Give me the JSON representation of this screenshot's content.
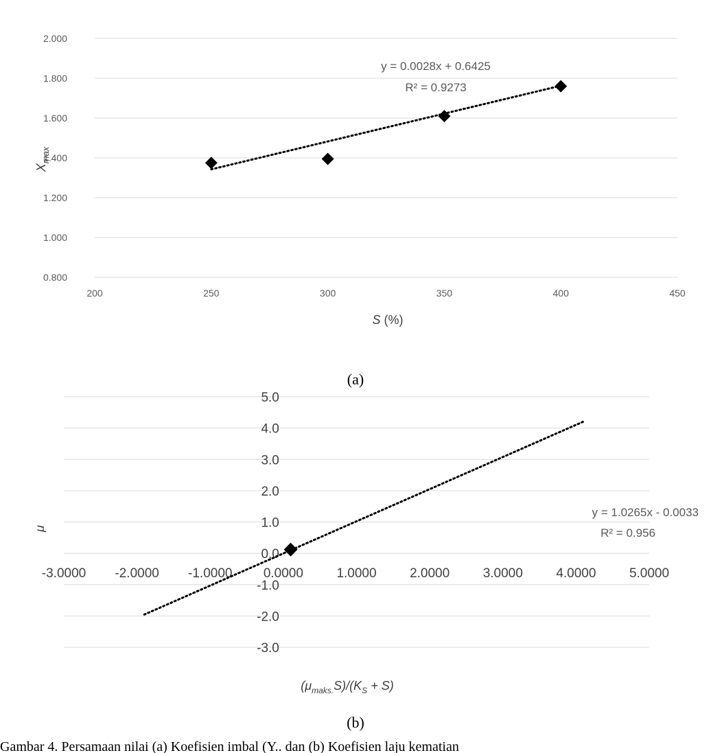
{
  "chart_data": [
    {
      "type": "scatter",
      "title": "",
      "xlabel": "S (%)",
      "ylabel": "Xmax",
      "xlim": [
        200,
        450
      ],
      "ylim": [
        0.8,
        2.0
      ],
      "x_ticks": [
        "200",
        "250",
        "300",
        "350",
        "400",
        "450"
      ],
      "y_ticks": [
        "0.800",
        "1.000",
        "1.200",
        "1.400",
        "1.600",
        "1.800",
        "2.000"
      ],
      "grid": "horizontal",
      "marker": "diamond",
      "points": [
        {
          "x": 250,
          "y": 1.375
        },
        {
          "x": 300,
          "y": 1.395
        },
        {
          "x": 350,
          "y": 1.61
        },
        {
          "x": 400,
          "y": 1.76
        }
      ],
      "trendline": {
        "type": "linear",
        "slope": 0.0028,
        "intercept": 0.6425,
        "x_range": [
          250,
          400
        ]
      },
      "equation": "y = 0.0028x + 0.6425",
      "r2": "R² = 0.9273",
      "caption": "(a)"
    },
    {
      "type": "scatter",
      "title": "",
      "xlabel": "(μmaks.S)/(KS + S)",
      "ylabel": "μ",
      "xlim": [
        -3.0,
        5.0
      ],
      "ylim": [
        -3.0,
        5.0
      ],
      "x_ticks": [
        "-3.0000",
        "-2.0000",
        "-1.0000",
        "0.0000",
        "1.0000",
        "2.0000",
        "3.0000",
        "4.0000",
        "5.0000"
      ],
      "y_ticks": [
        "-3.0",
        "-2.0",
        "-1.0",
        "0.0",
        "1.0",
        "2.0",
        "3.0",
        "4.0",
        "5.0"
      ],
      "grid": "horizontal",
      "marker": "diamond",
      "points": [
        {
          "x": 0.1,
          "y": 0.12
        }
      ],
      "trendline": {
        "type": "linear",
        "slope": 1.0265,
        "intercept": -0.0033,
        "x_range": [
          -1.9,
          4.1
        ]
      },
      "equation": "y = 1.0265x - 0.0033",
      "r2": "R² = 0.956",
      "caption": "(b)"
    }
  ],
  "footer_text": "Gambar 4. Persamaan nilai (a) Koefisien imbal (Y.. dan (b) Koefisien laju kematian"
}
